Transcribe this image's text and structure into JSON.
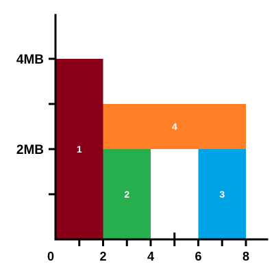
{
  "chart_data": {
    "type": "bar",
    "title": "",
    "xlabel": "",
    "ylabel": "",
    "xlim": [
      0,
      9
    ],
    "ylim": [
      0,
      5
    ],
    "x_tick_values": [
      1,
      2,
      3,
      4,
      5,
      6,
      7,
      8
    ],
    "x_tick_labels": [
      {
        "value": 0,
        "label": "0"
      },
      {
        "value": 2,
        "label": "2"
      },
      {
        "value": 4,
        "label": "4"
      },
      {
        "value": 6,
        "label": "6"
      },
      {
        "value": 8,
        "label": "8"
      }
    ],
    "y_tick_values": [
      1,
      2,
      3,
      4
    ],
    "y_tick_labels": [
      {
        "value": 2,
        "label": "2MB"
      },
      {
        "value": 4,
        "label": "4MB"
      }
    ],
    "grid": false,
    "legend": "none",
    "blocks": [
      {
        "label": "1",
        "x0": 0,
        "x1": 2,
        "y0": 0,
        "y1": 4,
        "color": "#8b0019"
      },
      {
        "label": "2",
        "x0": 2,
        "x1": 4,
        "y0": 0,
        "y1": 2,
        "color": "#27ae4f"
      },
      {
        "label": "3",
        "x0": 6,
        "x1": 8,
        "y0": 0,
        "y1": 2,
        "color": "#00a2e6"
      },
      {
        "label": "4",
        "x0": 2,
        "x1": 8,
        "y0": 2,
        "y1": 3,
        "color": "#ff7f27"
      }
    ]
  }
}
